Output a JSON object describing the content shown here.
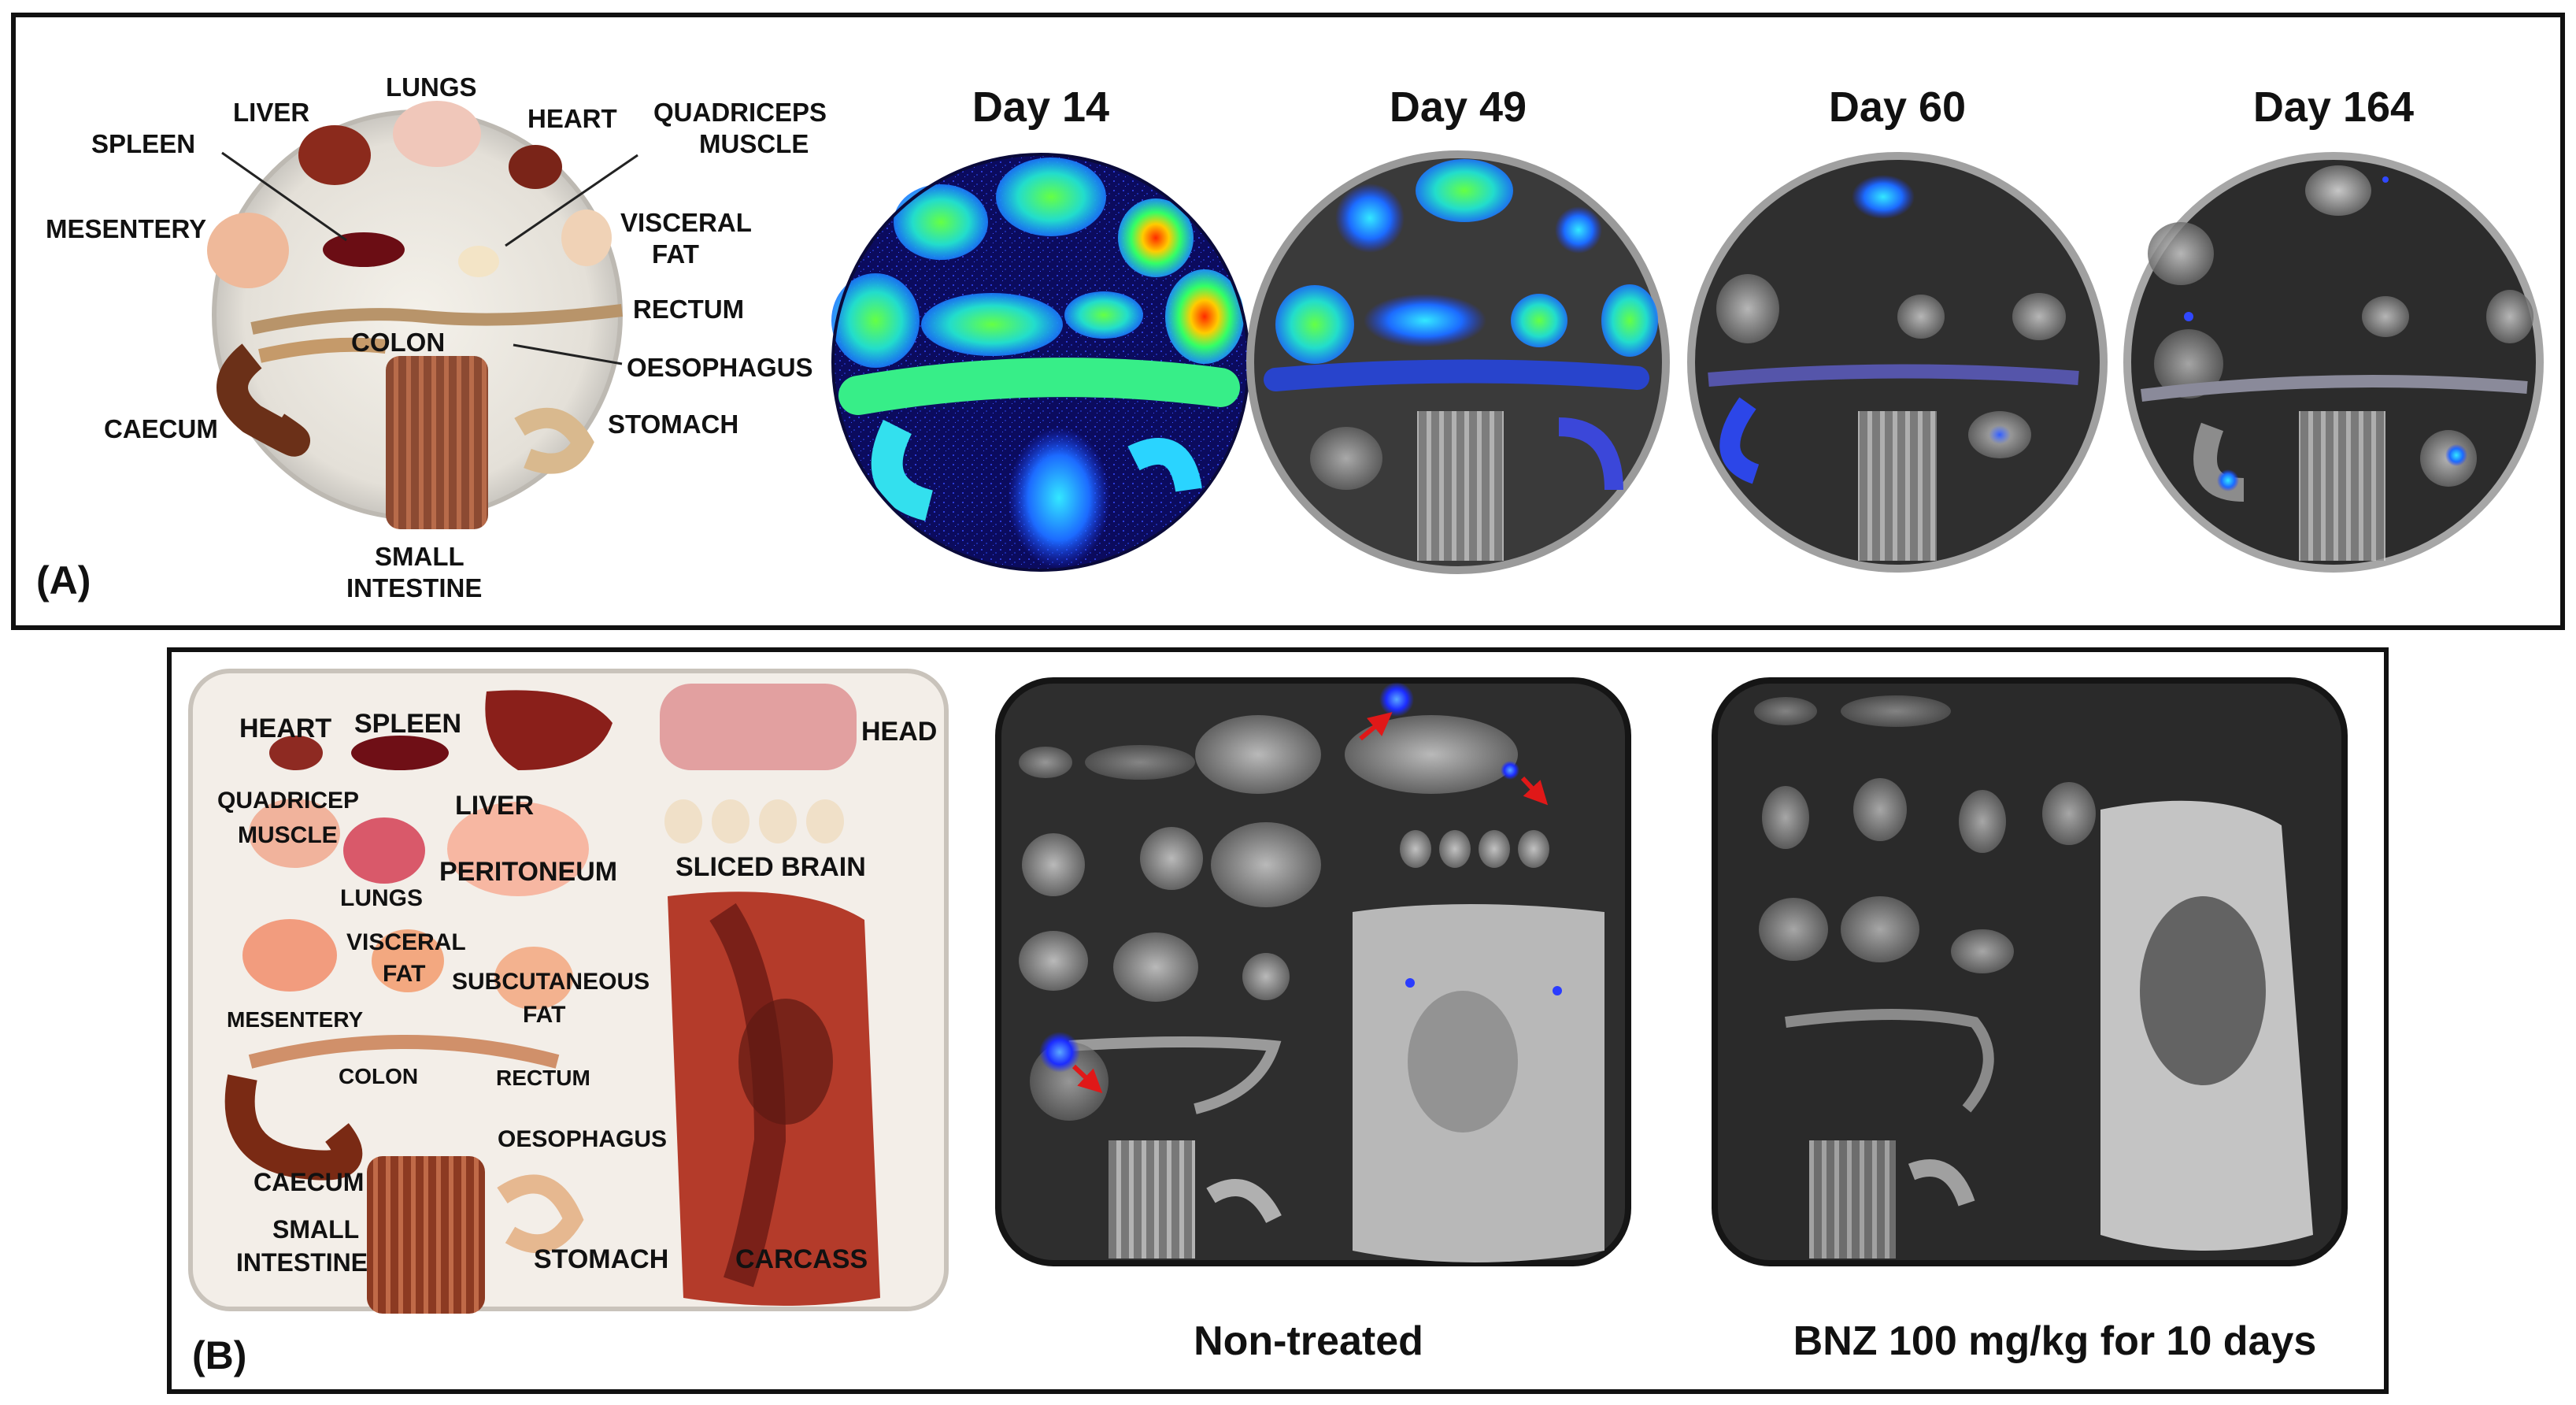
{
  "panel_a": {
    "panel_label": "(A)",
    "photo_labels": {
      "lungs": "LUNGS",
      "liver": "LIVER",
      "heart": "HEART",
      "quadriceps": "QUADRICEPS",
      "quadriceps_2": "MUSCLE",
      "spleen": "SPLEEN",
      "mesentery": "MESENTERY",
      "visceral": "VISCERAL",
      "visceral_2": "FAT",
      "rectum": "RECTUM",
      "colon": "COLON",
      "oesophagus": "OESOPHAGUS",
      "caecum": "CAECUM",
      "stomach": "STOMACH",
      "small_intestine": "SMALL",
      "small_intestine_2": "INTESTINE"
    },
    "days": [
      "Day 14",
      "Day 49",
      "Day 60",
      "Day 164"
    ]
  },
  "panel_b": {
    "panel_label": "(B)",
    "photo_labels": {
      "heart": "HEART",
      "spleen": "SPLEEN",
      "head": "HEAD",
      "quadricep": "QUADRICEP",
      "muscle": "MUSCLE",
      "liver": "LIVER",
      "sliced_brain": "SLICED BRAIN",
      "peritoneum": "PERITONEUM",
      "lungs": "LUNGS",
      "visceral": "VISCERAL",
      "fat": "FAT",
      "subcutaneous": "SUBCUTANEOUS",
      "subcutaneous_fat": "FAT",
      "mesentery": "MESENTERY",
      "colon": "COLON",
      "rectum": "RECTUM",
      "oesophagus": "OESOPHAGUS",
      "caecum": "CAECUM",
      "small": "SMALL",
      "intestine": "INTESTINE",
      "stomach": "STOMACH",
      "carcass": "CARCASS"
    },
    "captions": {
      "non_treated": "Non-treated",
      "treated": "BNZ 100 mg/kg for  10 days"
    }
  }
}
